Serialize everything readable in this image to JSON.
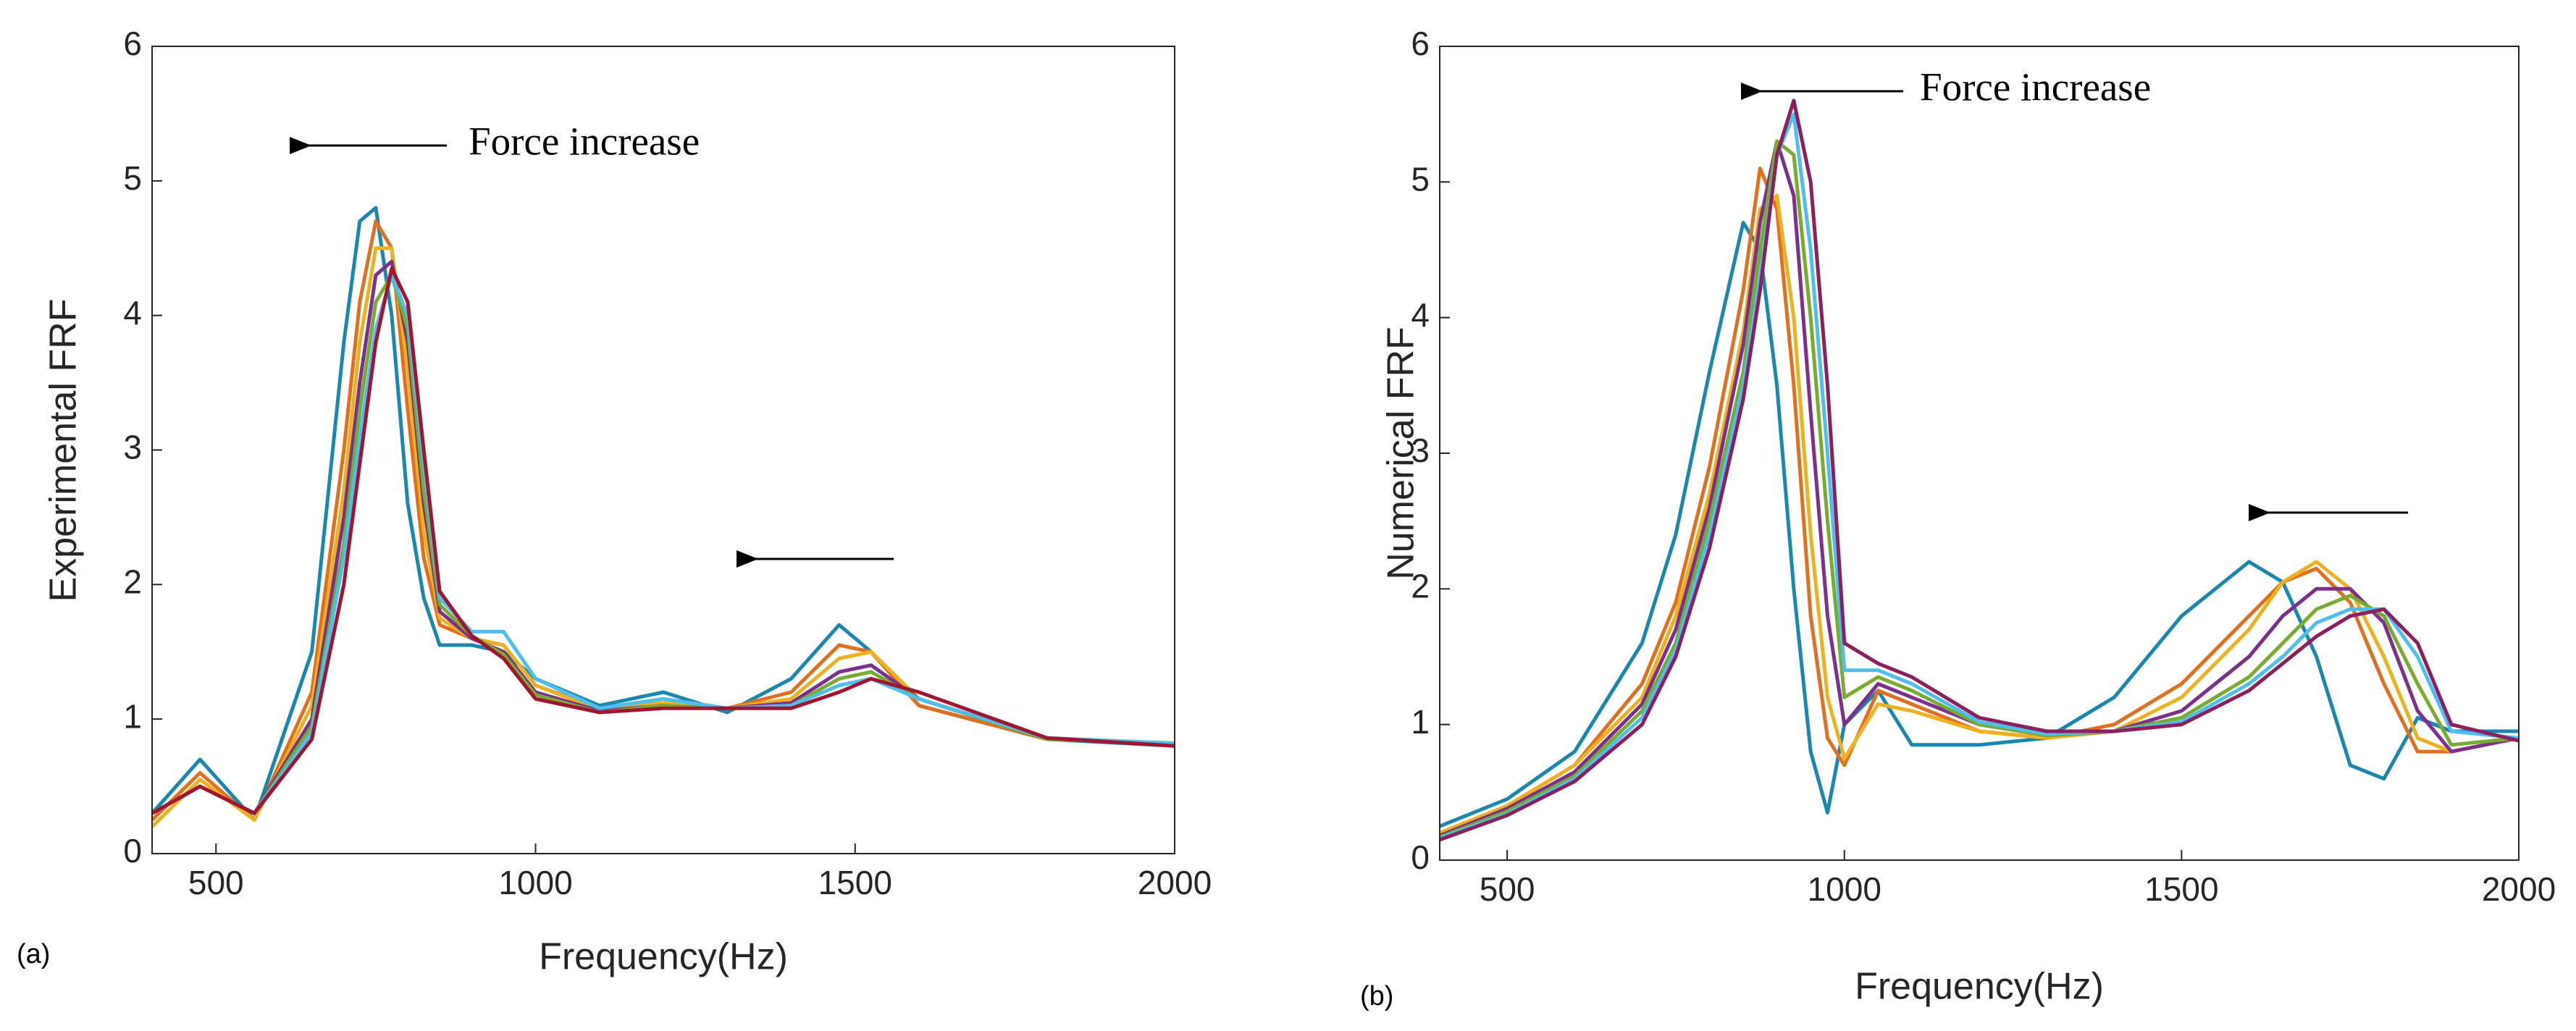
{
  "chart_data": [
    {
      "type": "line",
      "panel_label": "(a)",
      "x_label": "Frequency(Hz)",
      "y_label": "Experimental FRF",
      "annotation": "Force increase",
      "xlim": [
        400,
        2000
      ],
      "ylim": [
        0,
        6
      ],
      "xticks": [
        500,
        1000,
        1500,
        2000
      ],
      "yticks": [
        0,
        1,
        2,
        3,
        4,
        5,
        6
      ],
      "grid": false,
      "x": [
        400,
        475,
        560,
        650,
        700,
        725,
        750,
        775,
        800,
        825,
        850,
        900,
        950,
        1000,
        1100,
        1200,
        1300,
        1400,
        1475,
        1525,
        1600,
        1800,
        2000
      ],
      "series": [
        {
          "color": "#1a87b0",
          "values": [
            0.3,
            0.7,
            0.25,
            1.5,
            3.8,
            4.7,
            4.8,
            4.0,
            2.6,
            1.9,
            1.55,
            1.55,
            1.5,
            1.3,
            1.1,
            1.2,
            1.05,
            1.3,
            1.7,
            1.5,
            1.1,
            0.85,
            0.8
          ]
        },
        {
          "color": "#e0701f",
          "values": [
            0.25,
            0.6,
            0.25,
            1.2,
            3.0,
            4.1,
            4.7,
            4.5,
            3.3,
            2.2,
            1.7,
            1.6,
            1.55,
            1.25,
            1.08,
            1.15,
            1.08,
            1.2,
            1.55,
            1.5,
            1.1,
            0.85,
            0.82
          ]
        },
        {
          "color": "#edb120",
          "values": [
            0.2,
            0.55,
            0.25,
            1.1,
            2.7,
            3.8,
            4.5,
            4.5,
            3.6,
            2.4,
            1.75,
            1.6,
            1.55,
            1.25,
            1.07,
            1.12,
            1.08,
            1.15,
            1.45,
            1.5,
            1.15,
            0.85,
            0.82
          ]
        },
        {
          "color": "#7e2f8e",
          "values": [
            0.3,
            0.5,
            0.3,
            1.0,
            2.5,
            3.5,
            4.3,
            4.4,
            3.8,
            2.6,
            1.8,
            1.6,
            1.5,
            1.2,
            1.06,
            1.1,
            1.08,
            1.12,
            1.35,
            1.4,
            1.15,
            0.85,
            0.82
          ]
        },
        {
          "color": "#77ac30",
          "values": [
            0.3,
            0.5,
            0.3,
            0.95,
            2.3,
            3.3,
            4.1,
            4.3,
            3.9,
            2.7,
            1.85,
            1.62,
            1.48,
            1.18,
            1.05,
            1.1,
            1.08,
            1.1,
            1.3,
            1.35,
            1.15,
            0.85,
            0.82
          ]
        },
        {
          "color": "#4dbeee",
          "values": [
            0.3,
            0.5,
            0.3,
            0.9,
            2.2,
            3.1,
            3.9,
            4.3,
            4.0,
            2.9,
            1.9,
            1.65,
            1.65,
            1.3,
            1.08,
            1.15,
            1.08,
            1.1,
            1.25,
            1.3,
            1.15,
            0.86,
            0.82
          ]
        },
        {
          "color": "#a2142f",
          "values": [
            0.3,
            0.5,
            0.3,
            0.85,
            2.0,
            2.9,
            3.8,
            4.35,
            4.1,
            3.0,
            1.95,
            1.62,
            1.45,
            1.15,
            1.05,
            1.08,
            1.08,
            1.08,
            1.2,
            1.3,
            1.2,
            0.86,
            0.8
          ]
        }
      ]
    },
    {
      "type": "line",
      "panel_label": "(b)",
      "x_label": "Frequency(Hz)",
      "y_label": "Numerical FRF",
      "annotation": "Force increase",
      "xlim": [
        400,
        2000
      ],
      "ylim": [
        0,
        6
      ],
      "xticks": [
        500,
        1000,
        1500,
        2000
      ],
      "yticks": [
        0,
        1,
        2,
        3,
        4,
        5,
        6
      ],
      "grid": false,
      "x": [
        400,
        500,
        600,
        700,
        750,
        800,
        850,
        875,
        900,
        925,
        950,
        975,
        1000,
        1050,
        1100,
        1200,
        1300,
        1400,
        1500,
        1600,
        1650,
        1700,
        1750,
        1800,
        1850,
        1900,
        2000
      ],
      "series": [
        {
          "color": "#1a87b0",
          "values": [
            0.25,
            0.45,
            0.8,
            1.6,
            2.4,
            3.6,
            4.7,
            4.5,
            3.5,
            2.0,
            0.8,
            0.35,
            1.0,
            1.25,
            0.85,
            0.85,
            0.9,
            1.2,
            1.8,
            2.2,
            2.05,
            1.5,
            0.7,
            0.6,
            1.05,
            0.95,
            0.95
          ]
        },
        {
          "color": "#e0701f",
          "values": [
            0.2,
            0.4,
            0.7,
            1.3,
            1.9,
            2.9,
            4.2,
            5.1,
            4.8,
            3.5,
            1.8,
            0.9,
            0.7,
            1.25,
            1.15,
            0.95,
            0.9,
            1.0,
            1.3,
            1.8,
            2.05,
            2.15,
            1.9,
            1.3,
            0.8,
            0.8,
            0.9
          ]
        },
        {
          "color": "#edb120",
          "values": [
            0.2,
            0.4,
            0.7,
            1.2,
            1.8,
            2.7,
            3.9,
            4.8,
            4.9,
            4.0,
            2.4,
            1.2,
            0.75,
            1.15,
            1.1,
            0.95,
            0.9,
            0.95,
            1.2,
            1.7,
            2.05,
            2.2,
            2.0,
            1.5,
            0.9,
            0.8,
            0.9
          ]
        },
        {
          "color": "#7e2f8e",
          "values": [
            0.18,
            0.38,
            0.65,
            1.15,
            1.7,
            2.6,
            3.8,
            4.7,
            5.3,
            4.9,
            3.3,
            1.8,
            1.0,
            1.3,
            1.2,
            1.0,
            0.92,
            0.95,
            1.1,
            1.5,
            1.8,
            2.0,
            2.0,
            1.75,
            1.1,
            0.8,
            0.9
          ]
        },
        {
          "color": "#77ac30",
          "values": [
            0.17,
            0.36,
            0.62,
            1.1,
            1.6,
            2.5,
            3.6,
            4.5,
            5.3,
            5.2,
            4.0,
            2.5,
            1.2,
            1.35,
            1.25,
            1.0,
            0.92,
            0.95,
            1.05,
            1.35,
            1.6,
            1.85,
            1.95,
            1.8,
            1.3,
            0.85,
            0.9
          ]
        },
        {
          "color": "#4dbeee",
          "values": [
            0.16,
            0.34,
            0.6,
            1.05,
            1.55,
            2.4,
            3.5,
            4.3,
            5.2,
            5.5,
            4.5,
            3.0,
            1.4,
            1.4,
            1.3,
            1.02,
            0.93,
            0.95,
            1.02,
            1.3,
            1.5,
            1.75,
            1.85,
            1.85,
            1.5,
            0.95,
            0.9
          ]
        },
        {
          "color": "#8e1f5e",
          "values": [
            0.15,
            0.33,
            0.58,
            1.0,
            1.5,
            2.3,
            3.4,
            4.2,
            5.2,
            5.6,
            5.0,
            3.5,
            1.6,
            1.45,
            1.35,
            1.05,
            0.95,
            0.95,
            1.0,
            1.25,
            1.45,
            1.65,
            1.8,
            1.85,
            1.6,
            1.0,
            0.88
          ]
        }
      ]
    }
  ]
}
